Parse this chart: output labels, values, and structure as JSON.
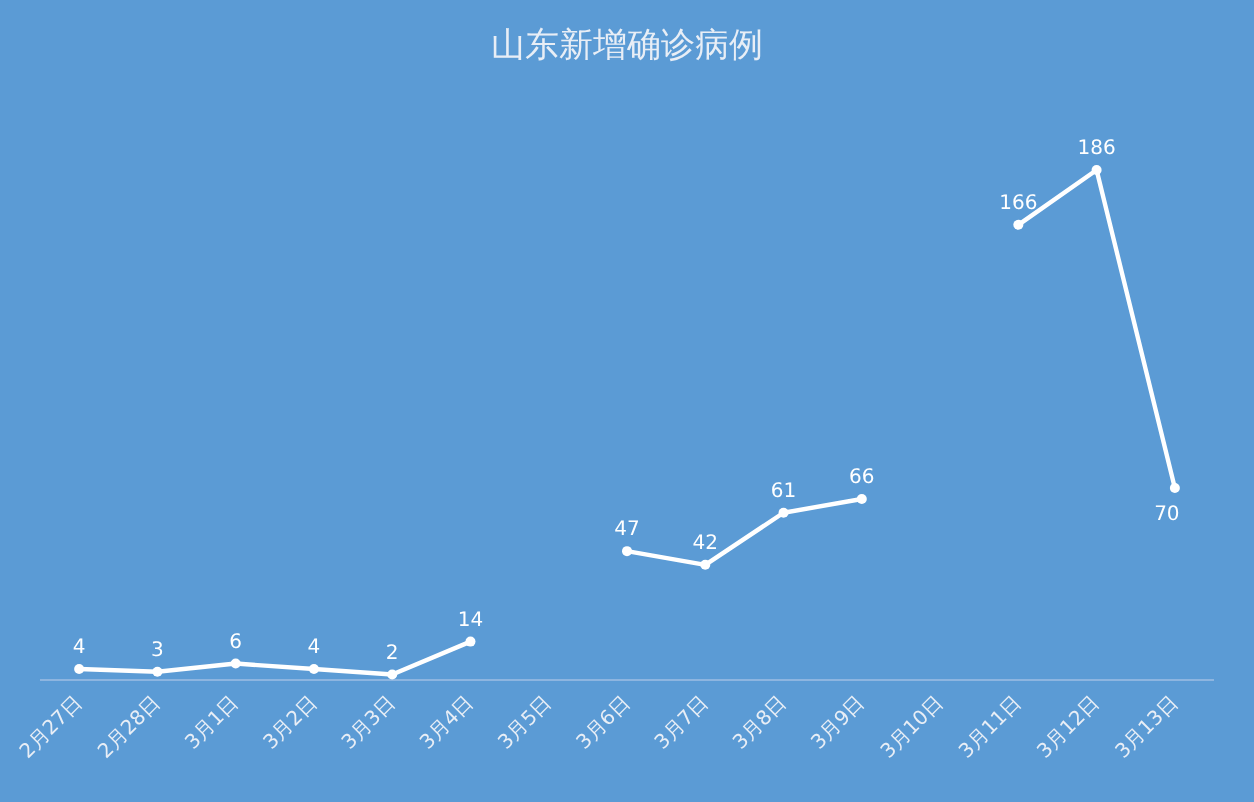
{
  "chart_data": {
    "type": "line",
    "title": "山东新增确诊病例",
    "categories": [
      "2月27日",
      "2月28日",
      "3月1日",
      "3月2日",
      "3月3日",
      "3月4日",
      "3月5日",
      "3月6日",
      "3月7日",
      "3月8日",
      "3月9日",
      "3月10日",
      "3月11日",
      "3月12日",
      "3月13日"
    ],
    "series": [
      {
        "color": "#ffffff",
        "values": [
          4,
          3,
          6,
          4,
          2,
          14,
          null,
          47,
          42,
          61,
          66,
          null,
          166,
          186,
          70
        ]
      }
    ],
    "data_labels": true,
    "marker": "circle",
    "line_style": "solid",
    "grid": false
  }
}
